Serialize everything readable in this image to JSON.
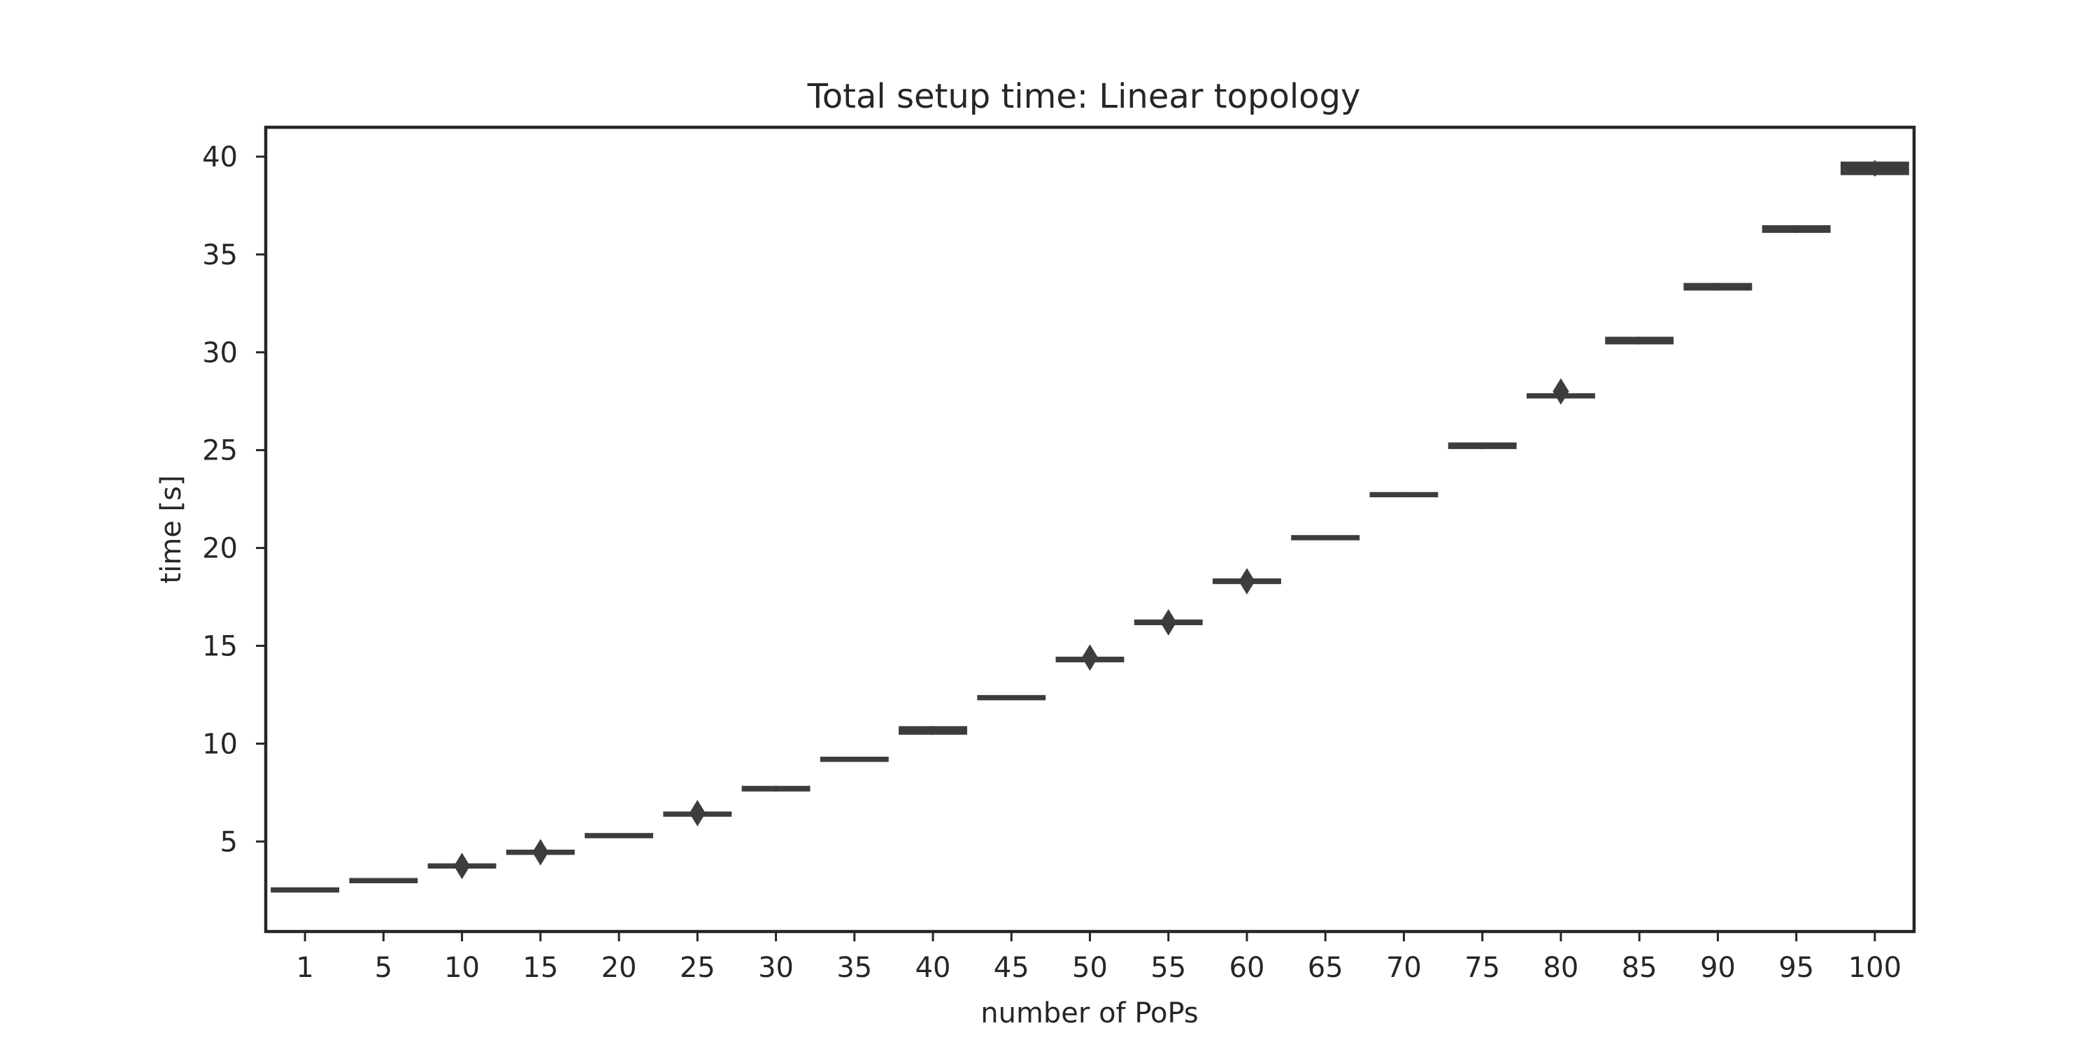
{
  "chart_data": {
    "type": "boxplot",
    "title": "Total setup time: Linear topology",
    "xlabel": "number of PoPs",
    "ylabel": "time [s]",
    "categories": [
      "1",
      "5",
      "10",
      "15",
      "20",
      "25",
      "30",
      "35",
      "40",
      "45",
      "50",
      "55",
      "60",
      "65",
      "70",
      "75",
      "80",
      "85",
      "90",
      "95",
      "100"
    ],
    "ylim": [
      0.4,
      41.5
    ],
    "yticks": [
      5,
      10,
      15,
      20,
      25,
      30,
      35,
      40
    ],
    "grid": false,
    "color": "#3d3d3d",
    "boxes": [
      {
        "x": "1",
        "q1": 2.45,
        "median": 2.5,
        "q3": 2.6,
        "whislo": 2.4,
        "whishi": 2.65,
        "fliers": []
      },
      {
        "x": "5",
        "q1": 2.95,
        "median": 3.0,
        "q3": 3.05,
        "whislo": 2.92,
        "whishi": 3.08,
        "fliers": []
      },
      {
        "x": "10",
        "q1": 3.7,
        "median": 3.75,
        "q3": 3.8,
        "whislo": 3.65,
        "whishi": 3.85,
        "fliers": [
          3.75
        ]
      },
      {
        "x": "15",
        "q1": 4.4,
        "median": 4.45,
        "q3": 4.5,
        "whislo": 4.35,
        "whishi": 4.55,
        "fliers": [
          4.45
        ]
      },
      {
        "x": "20",
        "q1": 5.25,
        "median": 5.3,
        "q3": 5.35,
        "whislo": 5.2,
        "whishi": 5.38,
        "fliers": []
      },
      {
        "x": "25",
        "q1": 6.35,
        "median": 6.4,
        "q3": 6.45,
        "whislo": 6.3,
        "whishi": 6.5,
        "fliers": [
          6.45
        ]
      },
      {
        "x": "30",
        "q1": 7.6,
        "median": 7.7,
        "q3": 7.8,
        "whislo": 7.55,
        "whishi": 7.85,
        "fliers": []
      },
      {
        "x": "35",
        "q1": 9.15,
        "median": 9.2,
        "q3": 9.25,
        "whislo": 9.12,
        "whishi": 9.28,
        "fliers": []
      },
      {
        "x": "40",
        "q1": 10.5,
        "median": 10.7,
        "q3": 10.85,
        "whislo": 10.45,
        "whishi": 10.9,
        "fliers": []
      },
      {
        "x": "45",
        "q1": 12.3,
        "median": 12.35,
        "q3": 12.4,
        "whislo": 12.25,
        "whishi": 12.45,
        "fliers": []
      },
      {
        "x": "50",
        "q1": 14.2,
        "median": 14.3,
        "q3": 14.4,
        "whislo": 14.15,
        "whishi": 14.45,
        "fliers": [
          14.4
        ]
      },
      {
        "x": "55",
        "q1": 16.1,
        "median": 16.2,
        "q3": 16.3,
        "whislo": 16.05,
        "whishi": 16.35,
        "fliers": [
          16.2
        ]
      },
      {
        "x": "60",
        "q1": 18.2,
        "median": 18.3,
        "q3": 18.4,
        "whislo": 18.15,
        "whishi": 18.45,
        "fliers": [
          18.3
        ]
      },
      {
        "x": "65",
        "q1": 20.45,
        "median": 20.5,
        "q3": 20.6,
        "whislo": 20.4,
        "whishi": 20.65,
        "fliers": []
      },
      {
        "x": "70",
        "q1": 22.65,
        "median": 22.7,
        "q3": 22.8,
        "whislo": 22.6,
        "whishi": 22.85,
        "fliers": []
      },
      {
        "x": "75",
        "q1": 25.1,
        "median": 25.2,
        "q3": 25.35,
        "whislo": 25.05,
        "whishi": 25.4,
        "fliers": []
      },
      {
        "x": "80",
        "q1": 27.7,
        "median": 27.75,
        "q3": 27.85,
        "whislo": 27.65,
        "whishi": 27.9,
        "fliers": [
          28.0
        ]
      },
      {
        "x": "85",
        "q1": 30.45,
        "median": 30.6,
        "q3": 30.75,
        "whislo": 30.4,
        "whishi": 30.8,
        "fliers": []
      },
      {
        "x": "90",
        "q1": 33.2,
        "median": 33.35,
        "q3": 33.5,
        "whislo": 33.15,
        "whishi": 33.55,
        "fliers": []
      },
      {
        "x": "95",
        "q1": 36.15,
        "median": 36.3,
        "q3": 36.45,
        "whislo": 36.1,
        "whishi": 36.5,
        "fliers": []
      },
      {
        "x": "100",
        "q1": 39.1,
        "median": 39.4,
        "q3": 39.7,
        "whislo": 39.0,
        "whishi": 39.8,
        "fliers": []
      }
    ]
  }
}
